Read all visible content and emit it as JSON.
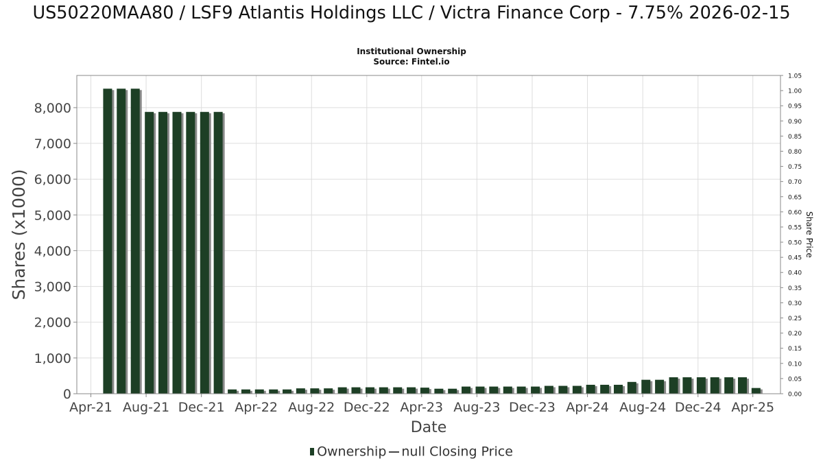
{
  "header": {
    "title": "US50220MAA80 / LSF9 Atlantis Holdings LLC / Victra Finance Corp - 7.75% 2026-02-15",
    "subtitle_line1": "Institutional Ownership",
    "subtitle_line2": "Source: Fintel.io"
  },
  "legend": {
    "ownership": "Ownership",
    "closing_price": "null Closing Price"
  },
  "chart_data": {
    "type": "bar",
    "title": "US50220MAA80 / LSF9 Atlantis Holdings LLC / Victra Finance Corp - 7.75% 2026-02-15",
    "subtitle": "Institutional Ownership\nSource: Fintel.io",
    "xlabel": "Date",
    "ylabel": "Shares (x1000)",
    "y2label": "Share Price",
    "ylim": [
      0,
      8900
    ],
    "y2lim": [
      0,
      1.05
    ],
    "yticks": [
      0,
      1000,
      2000,
      3000,
      4000,
      5000,
      6000,
      7000,
      8000
    ],
    "yticklabels": [
      "0",
      "1,000",
      "2,000",
      "3,000",
      "4,000",
      "5,000",
      "6,000",
      "7,000",
      "8,000"
    ],
    "y2ticks": [
      0,
      0.05,
      0.1,
      0.15,
      0.2,
      0.25,
      0.3,
      0.35,
      0.4,
      0.45,
      0.5,
      0.55,
      0.6,
      0.65,
      0.7,
      0.75,
      0.8,
      0.85,
      0.9,
      0.95,
      1.0,
      1.05
    ],
    "y2ticklabels": [
      "0.00",
      "0.05",
      "0.10",
      "0.15",
      "0.20",
      "0.25",
      "0.30",
      "0.35",
      "0.40",
      "0.45",
      "0.50",
      "0.55",
      "0.60",
      "0.65",
      "0.70",
      "0.75",
      "0.80",
      "0.85",
      "0.90",
      "0.95",
      "1.00",
      "1.05"
    ],
    "xticks": [
      "2021-04-01",
      "2021-08-01",
      "2021-12-01",
      "2022-04-01",
      "2022-08-01",
      "2022-12-01",
      "2023-04-01",
      "2023-08-01",
      "2023-12-01",
      "2024-04-01",
      "2024-08-01",
      "2024-12-01",
      "2025-04-01"
    ],
    "xticklabels": [
      "Apr-21",
      "Aug-21",
      "Dec-21",
      "Apr-22",
      "Aug-22",
      "Dec-22",
      "Apr-23",
      "Aug-23",
      "Dec-23",
      "Apr-24",
      "Aug-24",
      "Dec-24",
      "Apr-25"
    ],
    "xlim": [
      "2021-03-01",
      "2025-06-01"
    ],
    "grid": true,
    "legend_position": "bottom",
    "colors": {
      "bar": "#1d3f25",
      "bar_shadow": "#8a8a8a"
    },
    "series": [
      {
        "name": "Ownership",
        "x": [
          "2021-05-08",
          "2021-06-07",
          "2021-07-08",
          "2021-08-08",
          "2021-09-07",
          "2021-10-08",
          "2021-11-07",
          "2021-12-08",
          "2022-01-07",
          "2022-02-07",
          "2022-03-09",
          "2022-04-08",
          "2022-05-09",
          "2022-06-08",
          "2022-07-08",
          "2022-08-08",
          "2022-09-07",
          "2022-10-08",
          "2022-11-07",
          "2022-12-08",
          "2023-01-07",
          "2023-02-07",
          "2023-03-09",
          "2023-04-08",
          "2023-05-09",
          "2023-06-08",
          "2023-07-08",
          "2023-08-08",
          "2023-09-07",
          "2023-10-08",
          "2023-11-07",
          "2023-12-08",
          "2024-01-07",
          "2024-02-07",
          "2024-03-09",
          "2024-04-08",
          "2024-05-09",
          "2024-06-08",
          "2024-07-08",
          "2024-08-08",
          "2024-09-07",
          "2024-10-08",
          "2024-11-07",
          "2024-12-08",
          "2025-01-07",
          "2025-02-07",
          "2025-03-09",
          "2025-04-08"
        ],
        "values": [
          8530,
          8530,
          8530,
          7880,
          7880,
          7880,
          7880,
          7880,
          7880,
          120,
          120,
          120,
          120,
          120,
          150,
          150,
          150,
          180,
          180,
          180,
          180,
          180,
          180,
          170,
          140,
          140,
          200,
          200,
          200,
          200,
          200,
          200,
          220,
          220,
          220,
          250,
          250,
          250,
          330,
          390,
          390,
          460,
          460,
          460,
          460,
          460,
          460,
          160
        ]
      },
      {
        "name": "null Closing Price",
        "x": [],
        "values": []
      }
    ]
  }
}
